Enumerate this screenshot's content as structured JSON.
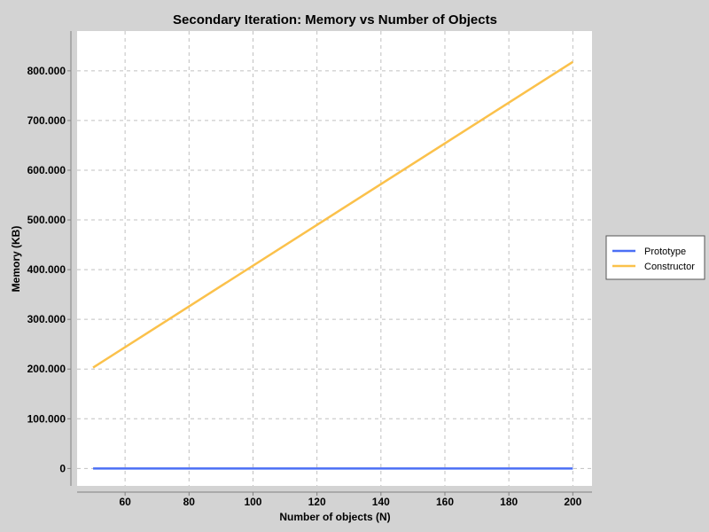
{
  "chart_data": {
    "type": "line",
    "title": "Secondary Iteration: Memory vs Number of Objects",
    "xlabel": "Number of objects (N)",
    "ylabel": "Memory (KB)",
    "xlim": [
      45,
      206
    ],
    "ylim": [
      -35000,
      880000
    ],
    "x_ticks": [
      60,
      80,
      100,
      120,
      140,
      160,
      180,
      200
    ],
    "x_tick_labels": [
      "60",
      "80",
      "100",
      "120",
      "140",
      "160",
      "180",
      "200"
    ],
    "y_ticks": [
      0,
      100000,
      200000,
      300000,
      400000,
      500000,
      600000,
      700000,
      800000
    ],
    "y_tick_labels": [
      "0",
      "100.000",
      "200.000",
      "300.000",
      "400.000",
      "500.000",
      "600.000",
      "700.000",
      "800.000"
    ],
    "grid": true,
    "legend_position": "right",
    "series": [
      {
        "name": "Prototype",
        "color": "#4b6ff5",
        "x": [
          50,
          200
        ],
        "y": [
          0,
          0
        ]
      },
      {
        "name": "Constructor",
        "color": "#fbc14b",
        "x": [
          50,
          200
        ],
        "y": [
          203000,
          818000
        ]
      }
    ]
  }
}
